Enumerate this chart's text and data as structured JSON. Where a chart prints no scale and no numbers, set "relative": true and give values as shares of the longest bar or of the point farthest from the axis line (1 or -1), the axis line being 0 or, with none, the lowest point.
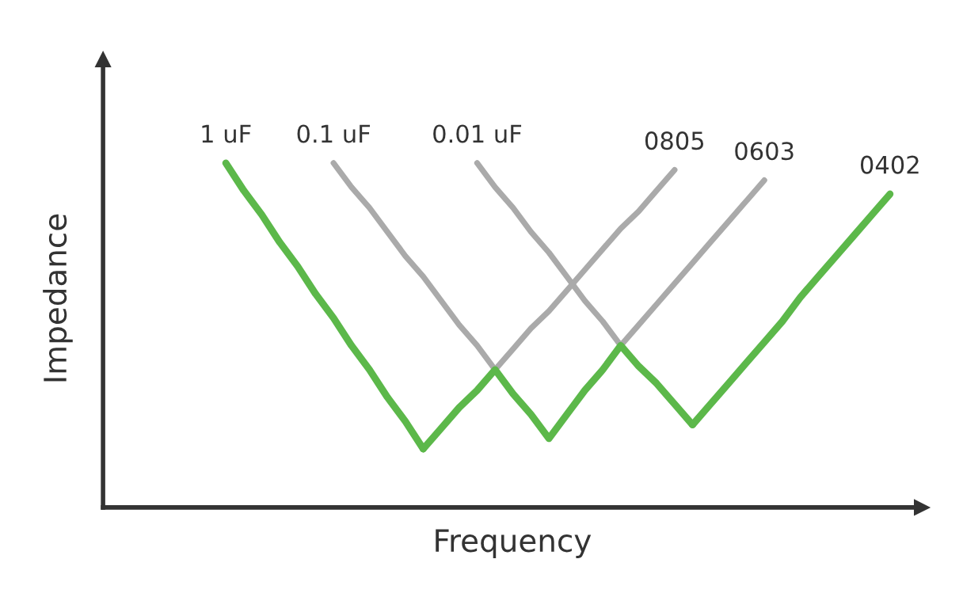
{
  "chart_data": {
    "type": "line",
    "relative": true,
    "xlabel": "Frequency",
    "ylabel": "Impedance",
    "categories": [
      null,
      null,
      null,
      null,
      null,
      null,
      null,
      null,
      null,
      null,
      null,
      null,
      null,
      null,
      null,
      null,
      null,
      null,
      null,
      null,
      null,
      null,
      null,
      null,
      null,
      null,
      null,
      null,
      null,
      null,
      null,
      null,
      null,
      null,
      null,
      null,
      null,
      null
    ],
    "series": [
      {
        "name": "0.1 uF",
        "color": "#aaaaaa",
        "values": [
          null,
          null,
          null,
          null,
          null,
          null,
          1.0,
          0.93,
          0.87,
          0.8,
          0.73,
          0.67,
          0.6,
          0.53,
          0.47,
          0.4,
          null,
          null,
          null,
          null,
          null,
          null,
          null,
          null,
          null,
          null,
          null,
          null,
          null,
          null,
          null,
          null,
          null,
          null,
          null,
          null,
          null,
          null
        ]
      },
      {
        "name": "0.01 uF",
        "color": "#aaaaaa",
        "values": [
          null,
          null,
          null,
          null,
          null,
          null,
          null,
          null,
          null,
          null,
          null,
          null,
          null,
          null,
          1.0,
          0.93,
          0.87,
          0.8,
          0.74,
          0.67,
          0.6,
          0.54,
          0.47,
          null,
          null,
          null,
          null,
          null,
          null,
          null,
          null,
          null,
          null,
          null,
          null,
          null,
          null,
          null
        ]
      },
      {
        "name": "0805",
        "color": "#aaaaaa",
        "values": [
          null,
          null,
          null,
          null,
          null,
          null,
          null,
          null,
          null,
          null,
          null,
          null,
          null,
          null,
          null,
          0.4,
          0.46,
          0.52,
          0.57,
          0.63,
          0.69,
          0.75,
          0.81,
          0.86,
          0.92,
          0.98,
          null,
          null,
          null,
          null,
          null,
          null,
          null,
          null,
          null,
          null,
          null,
          null
        ]
      },
      {
        "name": "0603",
        "color": "#aaaaaa",
        "values": [
          null,
          null,
          null,
          null,
          null,
          null,
          null,
          null,
          null,
          null,
          null,
          null,
          null,
          null,
          null,
          null,
          null,
          null,
          null,
          null,
          null,
          null,
          0.47,
          0.53,
          0.59,
          0.65,
          0.71,
          0.77,
          0.83,
          0.89,
          0.95,
          null,
          null,
          null,
          null,
          null,
          null,
          null
        ]
      },
      {
        "name": "1 uF",
        "color": "#5cb84a",
        "values": [
          1.0,
          0.92,
          0.85,
          0.77,
          0.7,
          0.62,
          0.55,
          0.47,
          0.4,
          0.32,
          0.25,
          0.17,
          null,
          null,
          null,
          null,
          null,
          null,
          null,
          null,
          null,
          null,
          null,
          null,
          null,
          null,
          null,
          null,
          null,
          null,
          null,
          null,
          null,
          null,
          null,
          null,
          null,
          null
        ]
      },
      {
        "color": "#5cb84a",
        "values": [
          null,
          null,
          null,
          null,
          null,
          null,
          null,
          null,
          null,
          null,
          null,
          0.17,
          0.23,
          0.29,
          0.34,
          0.4,
          0.33,
          0.27,
          0.2,
          0.27,
          0.34,
          0.4,
          0.47,
          0.41,
          0.36,
          0.3,
          0.24,
          null,
          null,
          null,
          null,
          null,
          null,
          null,
          null,
          null,
          null,
          null
        ]
      },
      {
        "name": "0402",
        "color": "#5cb84a",
        "values": [
          null,
          null,
          null,
          null,
          null,
          null,
          null,
          null,
          null,
          null,
          null,
          null,
          null,
          null,
          null,
          null,
          null,
          null,
          null,
          null,
          null,
          null,
          null,
          null,
          null,
          null,
          0.24,
          0.3,
          0.36,
          0.42,
          0.48,
          0.54,
          0.61,
          0.67,
          0.73,
          0.79,
          0.85,
          0.91
        ]
      }
    ],
    "legend": false,
    "marker": "none",
    "line_style": "solid"
  }
}
